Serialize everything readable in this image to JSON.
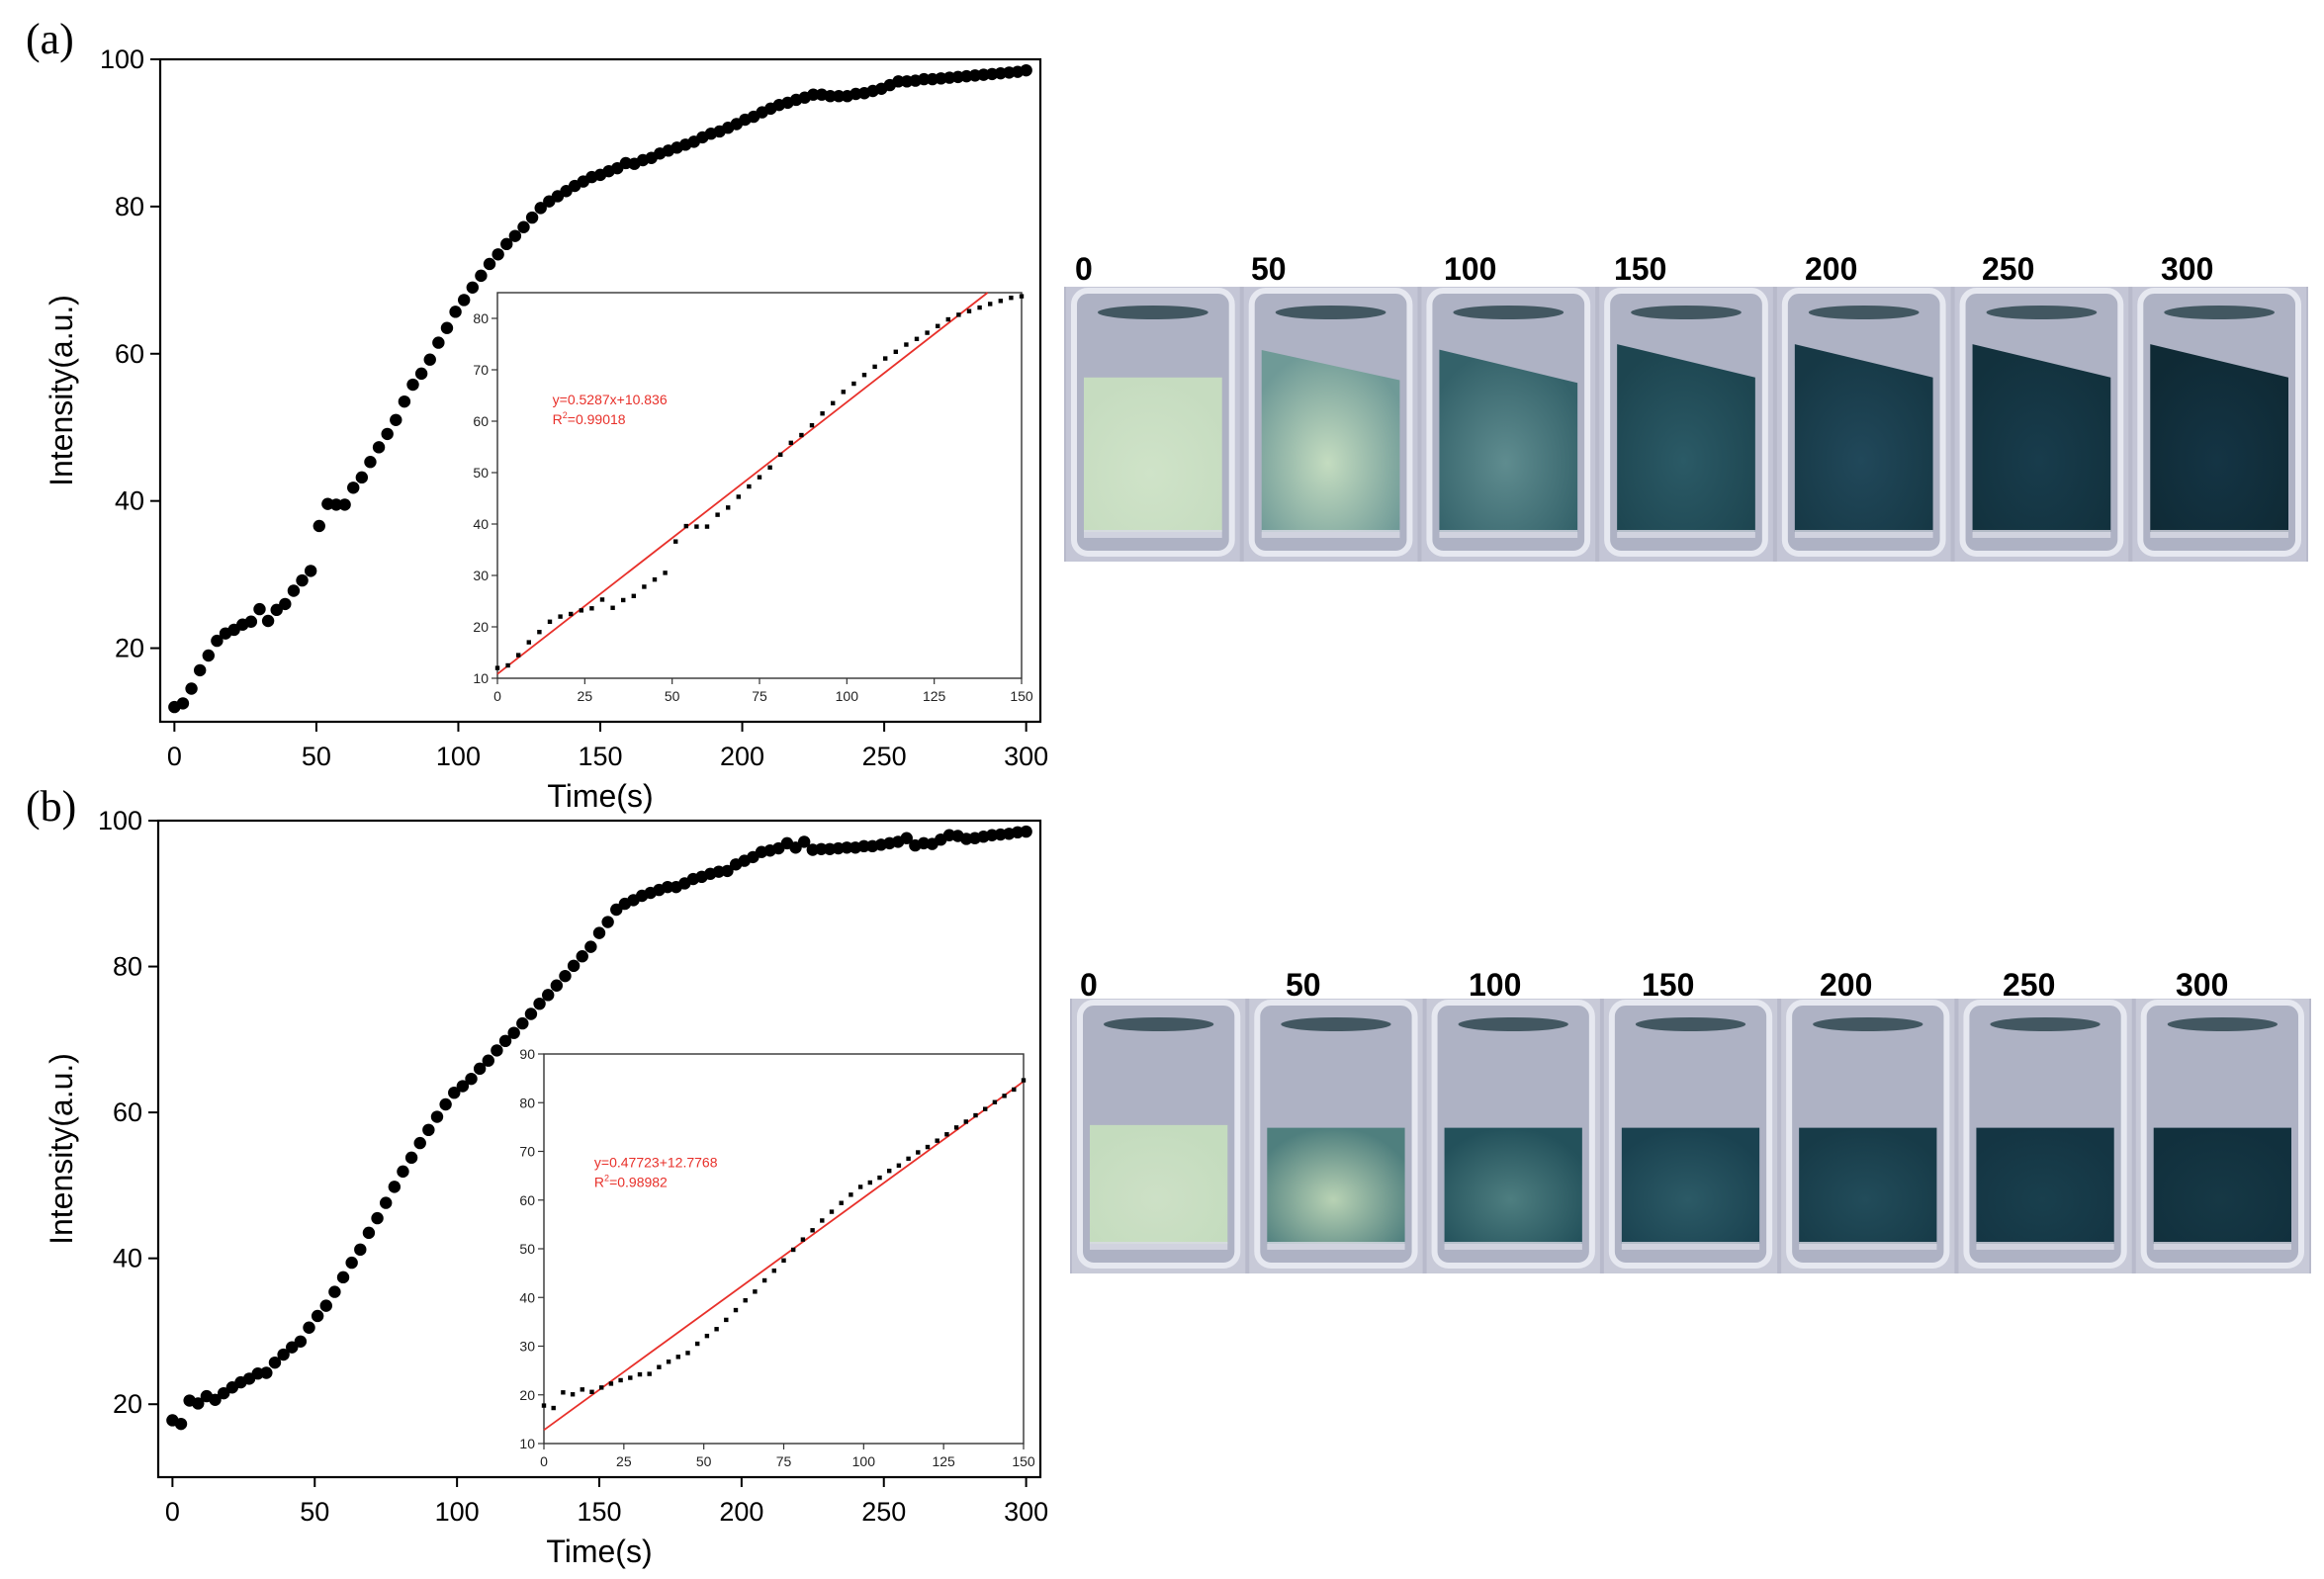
{
  "panels": [
    {
      "panel_label": "(a)",
      "vial_labels": [
        "0",
        "50",
        "100",
        "150",
        "200",
        "250",
        "300"
      ],
      "vial_colors": {
        "glass": "#c4c6d6",
        "liquid": [
          "#c6dcc0",
          "#6f9a97",
          "#34626a",
          "#1d4550",
          "#163845",
          "#12313d",
          "#0f2a35"
        ],
        "center": [
          "#cfe3c8",
          "#c4dcc0",
          "#5f8c8f",
          "#2b5a66",
          "#21485a",
          "#183c4c",
          "#143444"
        ]
      }
    },
    {
      "panel_label": "(b)",
      "vial_labels": [
        "0",
        "50",
        "100",
        "150",
        "200",
        "250",
        "300"
      ],
      "vial_colors": {
        "glass": "#c8cad8",
        "liquid": [
          "#c4dcbe",
          "#4f7f7e",
          "#23515b",
          "#1a4250",
          "#173b48",
          "#143543",
          "#11303d"
        ],
        "center": [
          "#cde0c6",
          "#b8d2b4",
          "#4e7e80",
          "#2c5a66",
          "#224c5a",
          "#193f4d",
          "#163845"
        ]
      }
    }
  ],
  "chart_data": [
    {
      "type": "scatter",
      "panel": "(a)",
      "xlabel": "Time(s)",
      "ylabel": "Intensity(a.u.)",
      "xlim": [
        -5,
        305
      ],
      "ylim": [
        10,
        100
      ],
      "xticks": [
        0,
        50,
        100,
        150,
        200,
        250,
        300
      ],
      "yticks": [
        20,
        40,
        60,
        80,
        100
      ],
      "marker_color": "#000000",
      "series": [
        {
          "x": [
            0,
            3,
            6,
            9,
            12,
            15,
            18,
            21,
            24,
            27,
            30,
            33,
            36,
            39,
            42,
            45,
            48,
            51,
            54,
            57,
            60,
            63,
            66,
            69,
            72,
            75,
            78,
            81,
            84,
            87,
            90,
            93,
            96,
            99,
            102,
            105,
            108,
            111,
            114,
            117,
            120,
            123,
            126,
            129,
            132,
            135,
            138,
            141,
            144,
            147,
            150,
            153,
            156,
            159,
            162,
            165,
            168,
            171,
            174,
            177,
            180,
            183,
            186,
            189,
            192,
            195,
            198,
            201,
            204,
            207,
            210,
            213,
            216,
            219,
            222,
            225,
            228,
            231,
            234,
            237,
            240,
            243,
            246,
            249,
            252,
            255,
            258,
            261,
            264,
            267,
            270,
            273,
            276,
            279,
            282,
            285,
            288,
            291,
            294,
            297,
            300
          ],
          "y": [
            12,
            12.5,
            14.5,
            17,
            19,
            21,
            22,
            22.5,
            23.2,
            23.6,
            25.3,
            23.7,
            25.2,
            26,
            27.8,
            29.2,
            30.5,
            36.6,
            39.6,
            39.5,
            39.5,
            41.8,
            43.2,
            45.3,
            47.3,
            49.1,
            51,
            53.5,
            55.8,
            57.3,
            59.2,
            61.5,
            63.5,
            65.7,
            67.3,
            69,
            70.6,
            72.2,
            73.5,
            74.9,
            76,
            77.2,
            78.5,
            79.8,
            80.7,
            81.4,
            82.1,
            82.8,
            83.4,
            84,
            84.3,
            84.8,
            85.2,
            85.9,
            85.8,
            86.3,
            86.6,
            87.2,
            87.6,
            88,
            88.4,
            88.8,
            89.4,
            89.9,
            90.2,
            90.7,
            91.2,
            91.8,
            92.2,
            92.8,
            93.3,
            93.8,
            94.1,
            94.5,
            94.8,
            95.2,
            95.2,
            95,
            95,
            95,
            95.3,
            95.4,
            95.7,
            96,
            96.5,
            97,
            97,
            97.1,
            97.3,
            97.3,
            97.4,
            97.5,
            97.6,
            97.7,
            97.8,
            97.9,
            98,
            98.1,
            98.2,
            98.3,
            98.5
          ]
        }
      ],
      "inset": {
        "type": "scatter",
        "xlim": [
          0,
          150
        ],
        "ylim": [
          10,
          85
        ],
        "xticks": [
          0,
          25,
          50,
          75,
          100,
          125,
          150
        ],
        "yticks": [
          10,
          20,
          30,
          40,
          50,
          60,
          70,
          80
        ],
        "fit": {
          "slope": 0.5287,
          "intercept": 10.836,
          "color": "#e8302a"
        },
        "annotation": {
          "equation": "y=0.5287x+10.836",
          "r2_prefix": "R",
          "r2_exp": "2",
          "r2_value": "=0.99018",
          "color": "#e8302a"
        },
        "x": [
          0,
          3,
          6,
          9,
          12,
          15,
          18,
          21,
          24,
          27,
          30,
          33,
          36,
          39,
          42,
          45,
          48,
          51,
          54,
          57,
          60,
          63,
          66,
          69,
          72,
          75,
          78,
          81,
          84,
          87,
          90,
          93,
          96,
          99,
          102,
          105,
          108,
          111,
          114,
          117,
          120,
          123,
          126,
          129,
          132,
          135,
          138,
          141,
          144,
          147,
          150
        ],
        "y": [
          12,
          12.5,
          14.5,
          17,
          19,
          21,
          22,
          22.5,
          23.2,
          23.6,
          25.3,
          23.7,
          25.2,
          26,
          27.8,
          29.2,
          30.5,
          36.6,
          39.6,
          39.5,
          39.5,
          41.8,
          43.2,
          45.3,
          47.3,
          49.1,
          51,
          53.5,
          55.8,
          57.3,
          59.2,
          61.5,
          63.5,
          65.7,
          67.3,
          69,
          70.6,
          72.2,
          73.5,
          74.9,
          76,
          77.2,
          78.5,
          79.8,
          80.7,
          81.4,
          82.1,
          82.8,
          83.4,
          84,
          84.3
        ]
      }
    },
    {
      "type": "scatter",
      "panel": "(b)",
      "xlabel": "Time(s)",
      "ylabel": "Intensity(a.u.)",
      "xlim": [
        -5,
        305
      ],
      "ylim": [
        10,
        100
      ],
      "xticks": [
        0,
        50,
        100,
        150,
        200,
        250,
        300
      ],
      "yticks": [
        20,
        40,
        60,
        80,
        100
      ],
      "marker_color": "#000000",
      "series": [
        {
          "x": [
            0,
            3,
            6,
            9,
            12,
            15,
            18,
            21,
            24,
            27,
            30,
            33,
            36,
            39,
            42,
            45,
            48,
            51,
            54,
            57,
            60,
            63,
            66,
            69,
            72,
            75,
            78,
            81,
            84,
            87,
            90,
            93,
            96,
            99,
            102,
            105,
            108,
            111,
            114,
            117,
            120,
            123,
            126,
            129,
            132,
            135,
            138,
            141,
            144,
            147,
            150,
            153,
            156,
            159,
            162,
            165,
            168,
            171,
            174,
            177,
            180,
            183,
            186,
            189,
            192,
            195,
            198,
            201,
            204,
            207,
            210,
            213,
            216,
            219,
            222,
            225,
            228,
            231,
            234,
            237,
            240,
            243,
            246,
            249,
            252,
            255,
            258,
            261,
            264,
            267,
            270,
            273,
            276,
            279,
            282,
            285,
            288,
            291,
            294,
            297,
            300
          ],
          "y": [
            17.8,
            17.3,
            20.5,
            20.1,
            21.1,
            20.6,
            21.5,
            22.3,
            23,
            23.5,
            24.2,
            24.3,
            25.7,
            26.8,
            27.8,
            28.6,
            30.5,
            32.1,
            33.5,
            35.4,
            37.4,
            39.4,
            41.2,
            43.5,
            45.5,
            47.6,
            49.8,
            51.9,
            53.8,
            55.8,
            57.6,
            59.4,
            61.1,
            62.7,
            63.6,
            64.6,
            66,
            67.1,
            68.5,
            69.8,
            70.9,
            72.2,
            73.5,
            74.9,
            76.1,
            77.4,
            78.7,
            80.1,
            81.4,
            82.7,
            84.6,
            86.1,
            87.8,
            88.6,
            89.1,
            89.7,
            90.1,
            90.5,
            90.9,
            90.9,
            91.4,
            92,
            92.3,
            92.7,
            93,
            93.1,
            94,
            94.5,
            95,
            95.7,
            95.9,
            96.2,
            96.9,
            96.3,
            97.1,
            96,
            96.1,
            96.1,
            96.2,
            96.3,
            96.3,
            96.5,
            96.5,
            96.7,
            96.9,
            97.1,
            97.6,
            96.6,
            96.9,
            96.8,
            97.4,
            98,
            97.9,
            97.5,
            97.6,
            97.8,
            98,
            98.1,
            98.2,
            98.4,
            98.5
          ]
        }
      ],
      "inset": {
        "type": "scatter",
        "xlim": [
          0,
          150
        ],
        "ylim": [
          10,
          90
        ],
        "xticks": [
          0,
          25,
          50,
          75,
          100,
          125,
          150
        ],
        "yticks": [
          10,
          20,
          30,
          40,
          50,
          60,
          70,
          80,
          90
        ],
        "fit": {
          "slope": 0.47723,
          "intercept": 12.7768,
          "color": "#e8302a"
        },
        "annotation": {
          "equation": "y=0.47723+12.7768",
          "r2_prefix": "R",
          "r2_exp": "2",
          "r2_value": "=0.98982",
          "color": "#e8302a"
        },
        "x": [
          0,
          3,
          6,
          9,
          12,
          15,
          18,
          21,
          24,
          27,
          30,
          33,
          36,
          39,
          42,
          45,
          48,
          51,
          54,
          57,
          60,
          63,
          66,
          69,
          72,
          75,
          78,
          81,
          84,
          87,
          90,
          93,
          96,
          99,
          102,
          105,
          108,
          111,
          114,
          117,
          120,
          123,
          126,
          129,
          132,
          135,
          138,
          141,
          144,
          147,
          150
        ],
        "y": [
          17.8,
          17.3,
          20.5,
          20.1,
          21.1,
          20.6,
          21.5,
          22.3,
          23,
          23.5,
          24.2,
          24.3,
          25.7,
          26.8,
          27.8,
          28.6,
          30.5,
          32.1,
          33.5,
          35.4,
          37.4,
          39.4,
          41.2,
          43.5,
          45.5,
          47.6,
          49.8,
          51.9,
          53.8,
          55.8,
          57.6,
          59.4,
          61.1,
          62.7,
          63.6,
          64.6,
          66,
          67.1,
          68.5,
          69.8,
          70.9,
          72.2,
          73.5,
          74.9,
          76.1,
          77.4,
          78.7,
          80.1,
          81.4,
          82.7,
          84.6
        ]
      }
    }
  ]
}
